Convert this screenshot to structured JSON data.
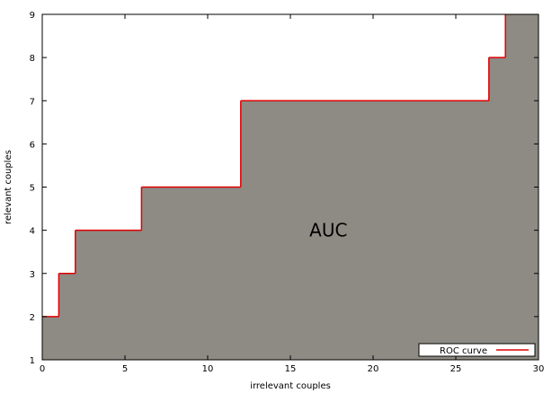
{
  "chart_data": {
    "type": "area",
    "title": "",
    "xlabel": "irrelevant couples",
    "ylabel": "relevant couples",
    "xlim": [
      0,
      30
    ],
    "ylim": [
      1,
      9
    ],
    "xticks": [
      0,
      5,
      10,
      15,
      20,
      25,
      30
    ],
    "yticks": [
      1,
      2,
      3,
      4,
      5,
      6,
      7,
      8,
      9
    ],
    "grid": false,
    "legend_position": "bottom-right",
    "series": [
      {
        "name": "ROC curve",
        "step": true,
        "x": [
          0,
          1,
          1,
          2,
          2,
          6,
          6,
          12,
          12,
          27,
          27,
          28,
          28
        ],
        "y": [
          2,
          2,
          3,
          3,
          4,
          4,
          5,
          5,
          7,
          7,
          8,
          8,
          9
        ]
      }
    ],
    "annotations": [
      {
        "text": "AUC",
        "x": 17.3,
        "y": 4
      }
    ],
    "colors": {
      "area_fill": "#8e8b85",
      "curve": "#e00000",
      "axes": "#000000"
    }
  }
}
